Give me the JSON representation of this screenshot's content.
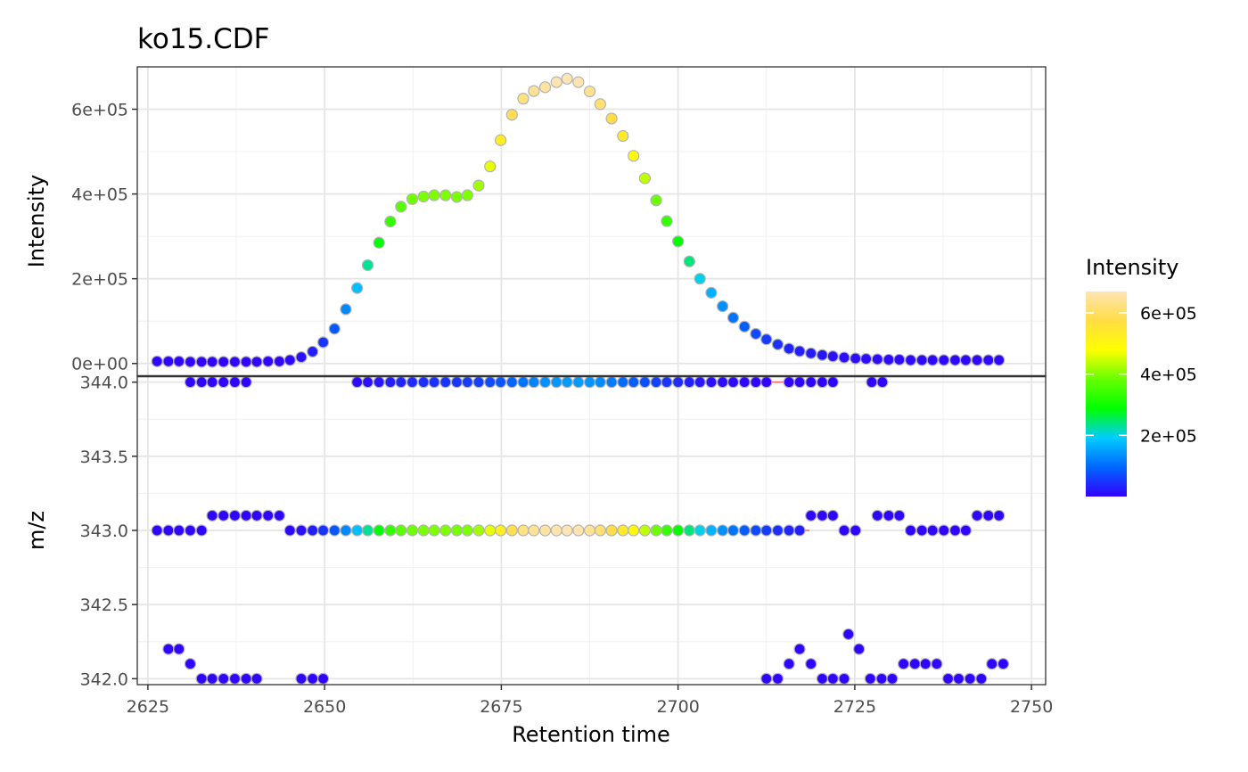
{
  "chart_data": {
    "type": "scatter",
    "title": "ko15.CDF",
    "xlabel": "Retention time",
    "xlim": [
      2623.5,
      2752
    ],
    "xticks": [
      2625,
      2650,
      2675,
      2700,
      2725,
      2750
    ],
    "xtick_labels": [
      "2625",
      "2650",
      "2675",
      "2700",
      "2725",
      "2750"
    ],
    "grid": true,
    "legend_position": "right",
    "colorbar": {
      "title": "Intensity",
      "range": [
        0,
        670000
      ],
      "ticks": [
        200000,
        400000,
        600000
      ],
      "tick_labels": [
        "2e+05",
        "4e+05",
        "6e+05"
      ],
      "colors": [
        "#3300ff",
        "#0066ff",
        "#00ccff",
        "#00ff00",
        "#66ff00",
        "#ffff00",
        "#ffdd44",
        "#ffe4b5"
      ]
    },
    "panels": [
      {
        "id": "intensity",
        "ylabel": "Intensity",
        "ylim": [
          -30000,
          700000
        ],
        "yticks": [
          0,
          200000,
          400000,
          600000
        ],
        "ytick_labels": [
          "0e+00",
          "2e+05",
          "4e+05",
          "6e+05"
        ],
        "x": [
          2626.3,
          2627.9,
          2629.4,
          2631.0,
          2632.6,
          2634.1,
          2635.7,
          2637.3,
          2638.9,
          2640.4,
          2642.0,
          2643.6,
          2645.1,
          2646.7,
          2648.3,
          2649.8,
          2651.4,
          2653.0,
          2654.6,
          2656.1,
          2657.7,
          2659.3,
          2660.8,
          2662.4,
          2664.0,
          2665.5,
          2667.1,
          2668.7,
          2670.2,
          2671.8,
          2673.4,
          2674.9,
          2676.5,
          2678.1,
          2679.6,
          2681.2,
          2682.8,
          2684.3,
          2685.9,
          2687.5,
          2689.0,
          2690.6,
          2692.2,
          2693.7,
          2695.3,
          2696.9,
          2698.4,
          2700.0,
          2701.6,
          2703.1,
          2704.7,
          2706.3,
          2707.8,
          2709.4,
          2711.0,
          2712.5,
          2714.1,
          2715.7,
          2717.2,
          2718.8,
          2720.4,
          2721.9,
          2723.5,
          2725.1,
          2726.6,
          2728.2,
          2729.8,
          2731.3,
          2732.9,
          2734.5,
          2736.0,
          2737.6,
          2739.2,
          2740.7,
          2742.3,
          2743.9,
          2745.4
        ],
        "y": [
          5000,
          5000,
          5000,
          4000,
          4000,
          4000,
          4000,
          4000,
          4000,
          4000,
          5000,
          5000,
          8000,
          15000,
          28000,
          50000,
          82000,
          128000,
          178000,
          232000,
          285000,
          335000,
          370000,
          388000,
          394000,
          397000,
          397000,
          393000,
          397000,
          420000,
          465000,
          527000,
          587000,
          625000,
          643000,
          652000,
          664000,
          672000,
          664000,
          642000,
          612000,
          578000,
          537000,
          490000,
          437000,
          385000,
          336000,
          288000,
          241000,
          200000,
          167000,
          135000,
          108000,
          87000,
          70000,
          57000,
          45000,
          35000,
          29000,
          24000,
          20000,
          17000,
          14000,
          12000,
          11000,
          10000,
          9000,
          9000,
          8000,
          8000,
          8000,
          8000,
          8000,
          8000,
          8000,
          8000,
          8000
        ],
        "intensity": [
          5000,
          5000,
          5000,
          4000,
          4000,
          4000,
          4000,
          4000,
          4000,
          4000,
          5000,
          5000,
          8000,
          15000,
          28000,
          50000,
          82000,
          128000,
          178000,
          232000,
          285000,
          335000,
          370000,
          388000,
          394000,
          397000,
          397000,
          393000,
          397000,
          420000,
          465000,
          527000,
          587000,
          625000,
          643000,
          652000,
          664000,
          672000,
          664000,
          642000,
          612000,
          578000,
          537000,
          490000,
          437000,
          385000,
          336000,
          288000,
          241000,
          200000,
          167000,
          135000,
          108000,
          87000,
          70000,
          57000,
          45000,
          35000,
          29000,
          24000,
          20000,
          17000,
          14000,
          12000,
          11000,
          10000,
          9000,
          9000,
          8000,
          8000,
          8000,
          8000,
          8000,
          8000,
          8000,
          8000,
          8000
        ]
      },
      {
        "id": "mz",
        "ylabel": "m/z",
        "ylim": [
          341.96,
          344.04
        ],
        "yticks": [
          342.0,
          342.5,
          343.0,
          343.5,
          344.0
        ],
        "ytick_labels": [
          "342.0",
          "342.5",
          "343.0",
          "343.5",
          "344.0"
        ],
        "peak_ranges": [
          {
            "mz": 344.0,
            "rt": [
              2653.9,
              2715.8
            ],
            "color": "#ff6666"
          },
          {
            "mz": 343.0,
            "rt": [
              2644.5,
              2718.6
            ],
            "color": "#ff6666"
          }
        ],
        "points": [
          {
            "x": [
              2631.0,
              2632.6,
              2634.1,
              2635.7,
              2637.3,
              2638.9
            ],
            "mz": 344.0,
            "intensity": [
              5000,
              5000,
              5000,
              5000,
              5000,
              5000
            ]
          },
          {
            "x": [
              2654.6,
              2656.1,
              2657.7,
              2659.3,
              2660.8,
              2662.4,
              2664.0,
              2665.5,
              2667.1,
              2668.7,
              2670.2,
              2671.8,
              2673.4,
              2674.9,
              2676.5,
              2678.1,
              2679.6,
              2681.2,
              2682.8,
              2684.3,
              2685.9,
              2687.5,
              2689.0,
              2690.6,
              2692.2,
              2693.7,
              2695.3,
              2696.9,
              2698.4,
              2700.0,
              2701.6,
              2703.1,
              2704.7,
              2706.3,
              2707.8,
              2709.4,
              2711.0,
              2712.5
            ],
            "mz": 344.0,
            "intensity": [
              10000,
              15000,
              20000,
              28000,
              35000,
              40000,
              45000,
              48000,
              50000,
              52000,
              55000,
              60000,
              70000,
              80000,
              95000,
              110000,
              125000,
              135000,
              140000,
              145000,
              145000,
              140000,
              130000,
              115000,
              100000,
              88000,
              75000,
              62000,
              50000,
              40000,
              30000,
              22000,
              15000,
              12000,
              10000,
              8000,
              6000,
              5000
            ]
          },
          {
            "x": [
              2715.7,
              2717.2,
              2718.8,
              2720.4,
              2721.9
            ],
            "mz": 344.0,
            "intensity": [
              5000,
              5000,
              5000,
              5000,
              5000
            ]
          },
          {
            "x": [
              2727.4,
              2728.9
            ],
            "mz": 344.0,
            "intensity": [
              5000,
              5000
            ]
          },
          {
            "x": [
              2626.3,
              2627.9,
              2629.4,
              2631.0,
              2632.6
            ],
            "mz": 343.0,
            "intensity": [
              5000,
              5000,
              5000,
              5000,
              5000
            ]
          },
          {
            "x": [
              2634.1,
              2635.7,
              2637.3,
              2638.9,
              2640.4,
              2642.0,
              2643.6
            ],
            "mz": 343.1,
            "intensity": [
              5000,
              5000,
              5000,
              5000,
              5000,
              5000,
              5000
            ]
          },
          {
            "x": [
              2645.1,
              2646.7,
              2648.3,
              2649.8,
              2651.4,
              2653.0,
              2654.6,
              2656.1,
              2657.7,
              2659.3,
              2660.8,
              2662.4,
              2664.0,
              2665.5,
              2667.1,
              2668.7,
              2670.2,
              2671.8,
              2673.4,
              2674.9,
              2676.5,
              2678.1,
              2679.6,
              2681.2,
              2682.8,
              2684.3,
              2685.9,
              2687.5,
              2689.0,
              2690.6,
              2692.2,
              2693.7,
              2695.3,
              2696.9,
              2698.4,
              2700.0,
              2701.6,
              2703.1,
              2704.7,
              2706.3,
              2707.8,
              2709.4,
              2711.0,
              2712.5,
              2714.1,
              2715.7,
              2717.2
            ],
            "mz": 343.0,
            "intensity": [
              8000,
              15000,
              28000,
              50000,
              82000,
              128000,
              178000,
              232000,
              285000,
              335000,
              370000,
              388000,
              394000,
              397000,
              397000,
              393000,
              397000,
              420000,
              465000,
              527000,
              587000,
              625000,
              643000,
              652000,
              664000,
              672000,
              664000,
              642000,
              612000,
              578000,
              537000,
              490000,
              437000,
              385000,
              336000,
              288000,
              241000,
              200000,
              167000,
              135000,
              108000,
              87000,
              70000,
              57000,
              45000,
              35000,
              29000
            ]
          },
          {
            "x": [
              2718.8,
              2720.4,
              2721.9
            ],
            "mz": 343.1,
            "intensity": [
              5000,
              5000,
              5000
            ]
          },
          {
            "x": [
              2723.5,
              2725.1
            ],
            "mz": 343.0,
            "intensity": [
              5000,
              5000
            ]
          },
          {
            "x": [
              2728.2,
              2729.8,
              2731.3
            ],
            "mz": 343.1,
            "intensity": [
              5000,
              5000,
              5000
            ]
          },
          {
            "x": [
              2732.9,
              2734.5,
              2736.0,
              2737.6,
              2739.2,
              2740.7
            ],
            "mz": 343.0,
            "intensity": [
              5000,
              5000,
              5000,
              5000,
              5000,
              5000
            ]
          },
          {
            "x": [
              2742.3,
              2743.9,
              2745.4
            ],
            "mz": 343.1,
            "intensity": [
              5000,
              5000,
              5000
            ]
          },
          {
            "x": [
              2627.9,
              2629.4
            ],
            "mz": 342.2,
            "intensity": [
              5000,
              5000
            ]
          },
          {
            "x": [
              2631.0
            ],
            "mz": 342.1,
            "intensity": [
              5000
            ]
          },
          {
            "x": [
              2632.6,
              2634.1,
              2635.7,
              2637.3,
              2638.9,
              2640.4
            ],
            "mz": 342.0,
            "intensity": [
              5000,
              5000,
              5000,
              5000,
              5000,
              5000
            ]
          },
          {
            "x": [
              2646.7,
              2648.3,
              2649.8
            ],
            "mz": 342.0,
            "intensity": [
              5000,
              5000,
              5000
            ]
          },
          {
            "x": [
              2712.5,
              2714.1
            ],
            "mz": 342.0,
            "intensity": [
              5000,
              5000
            ]
          },
          {
            "x": [
              2715.7
            ],
            "mz": 342.1,
            "intensity": [
              5000
            ]
          },
          {
            "x": [
              2717.2
            ],
            "mz": 342.2,
            "intensity": [
              5000
            ]
          },
          {
            "x": [
              2718.8
            ],
            "mz": 342.1,
            "intensity": [
              5000
            ]
          },
          {
            "x": [
              2720.4,
              2721.9,
              2723.5
            ],
            "mz": 342.0,
            "intensity": [
              5000,
              5000,
              5000
            ]
          },
          {
            "x": [
              2724.1
            ],
            "mz": 342.3,
            "intensity": [
              5000
            ]
          },
          {
            "x": [
              2725.6
            ],
            "mz": 342.2,
            "intensity": [
              5000
            ]
          },
          {
            "x": [
              2727.2,
              2728.8
            ],
            "mz": 342.0,
            "intensity": [
              5000,
              5000
            ]
          },
          {
            "x": [
              2730.3
            ],
            "mz": 342.0,
            "intensity": [
              5000
            ]
          },
          {
            "x": [
              2731.9,
              2733.5,
              2735.0,
              2736.6
            ],
            "mz": 342.1,
            "intensity": [
              5000,
              5000,
              5000,
              5000
            ]
          },
          {
            "x": [
              2738.2,
              2739.7,
              2741.3
            ],
            "mz": 342.0,
            "intensity": [
              5000,
              5000,
              5000
            ]
          },
          {
            "x": [
              2742.9
            ],
            "mz": 342.0,
            "intensity": [
              5000
            ]
          },
          {
            "x": [
              2744.4,
              2746.0
            ],
            "mz": 342.1,
            "intensity": [
              5000,
              5000
            ]
          }
        ]
      }
    ]
  }
}
